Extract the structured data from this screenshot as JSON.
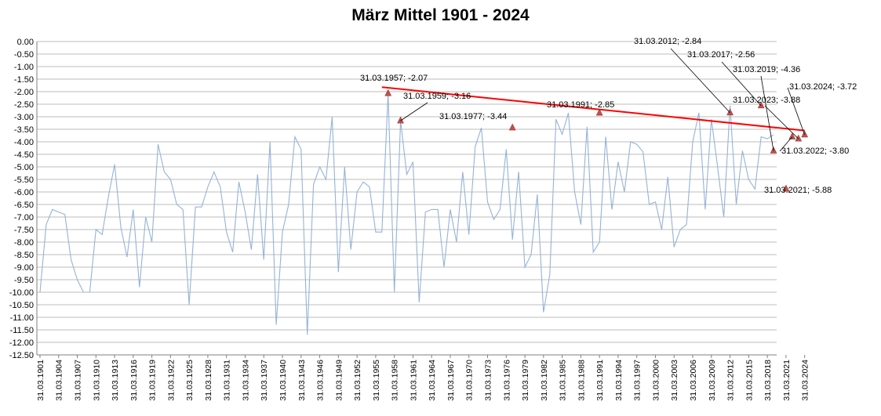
{
  "chart_data": {
    "type": "line",
    "title": "März Mittel 1901 - 2024",
    "xlabel": "",
    "ylabel": "",
    "ylim": [
      -12.5,
      0
    ],
    "y_ticks": [
      "0.00",
      "-0.50",
      "-1.00",
      "-1.50",
      "-2.00",
      "-2.50",
      "-3.00",
      "-3.50",
      "-4.00",
      "-4.50",
      "-5.00",
      "-5.50",
      "-6.00",
      "-6.50",
      "-7.00",
      "-7.50",
      "-8.00",
      "-8.50",
      "-9.00",
      "-9.50",
      "-10.00",
      "-10.50",
      "-11.00",
      "-11.50",
      "-12.00",
      "-12.50"
    ],
    "x_start_year": 1901,
    "x_tick_labels": [
      "31.03.1901",
      "31.03.1904",
      "31.03.1907",
      "31.03.1910",
      "31.03.1913",
      "31.03.1916",
      "31.03.1919",
      "31.03.1922",
      "31.03.1925",
      "31.03.1928",
      "31.03.1931",
      "31.03.1934",
      "31.03.1937",
      "31.03.1940",
      "31.03.1943",
      "31.03.1946",
      "31.03.1949",
      "31.03.1952",
      "31.03.1955",
      "31.03.1958",
      "31.03.1961",
      "31.03.1964",
      "31.03.1967",
      "31.03.1970",
      "31.03.1973",
      "31.03.1976",
      "31.03.1979",
      "31.03.1982",
      "31.03.1985",
      "31.03.1988",
      "31.03.1991",
      "31.03.1994",
      "31.03.1997",
      "31.03.2000",
      "31.03.2003",
      "31.03.2006",
      "31.03.2009",
      "31.03.2012",
      "31.03.2015",
      "31.03.2018",
      "31.03.2021",
      "31.03.2024"
    ],
    "grid": true,
    "series": [
      {
        "name": "",
        "color": "#95b3d7",
        "values": [
          -10.0,
          -7.3,
          -6.7,
          -6.8,
          -6.9,
          -8.7,
          -9.5,
          -10.0,
          -10.0,
          -7.5,
          -7.7,
          -6.2,
          -4.9,
          -7.4,
          -8.6,
          -6.7,
          -9.8,
          -7.0,
          -8.0,
          -4.1,
          -5.2,
          -5.5,
          -6.5,
          -6.7,
          -10.5,
          -6.6,
          -6.6,
          -5.8,
          -5.2,
          -5.8,
          -7.6,
          -8.4,
          -5.6,
          -6.8,
          -8.3,
          -5.3,
          -8.7,
          -4.0,
          -11.3,
          -7.6,
          -6.5,
          -3.8,
          -4.3,
          -11.7,
          -5.7,
          -5.0,
          -5.5,
          -3.0,
          -9.2,
          -5.0,
          -8.3,
          -6.0,
          -5.6,
          -5.8,
          -7.6,
          -7.6,
          -2.07,
          -10.0,
          -3.16,
          -5.3,
          -4.8,
          -10.4,
          -6.8,
          -6.7,
          -6.7,
          -9.0,
          -6.7,
          -8.0,
          -5.2,
          -7.7,
          -4.2,
          -3.44,
          -6.4,
          -7.1,
          -6.7,
          -4.3,
          -7.9,
          -5.2,
          -9.0,
          -8.5,
          -6.1,
          -10.8,
          -9.3,
          -3.1,
          -3.7,
          -2.85,
          -6.0,
          -7.3,
          -3.4,
          -8.4,
          -8.0,
          -3.8,
          -6.7,
          -4.8,
          -6.0,
          -4.0,
          -4.1,
          -4.4,
          -6.5,
          -6.4,
          -7.5,
          -5.4,
          -8.2,
          -7.5,
          -7.3,
          -4.0,
          -2.84,
          -6.7,
          -3.1,
          -5.0,
          -7.0,
          -2.56,
          -6.5,
          -4.36,
          -5.5,
          -5.88,
          -3.8,
          -3.88,
          -3.72
        ]
      }
    ],
    "highlight_markers": [
      {
        "year": 1957,
        "value": -2.07,
        "label": "31.03.1957; -2.07"
      },
      {
        "year": 1959,
        "value": -3.16,
        "label": "31.03.1959; -3.16"
      },
      {
        "year": 1977,
        "value": -3.44,
        "label": "31.03.1977; -3.44"
      },
      {
        "year": 1991,
        "value": -2.85,
        "label": "31.03.1991; -2.85"
      },
      {
        "year": 2012,
        "value": -2.84,
        "label": "31.03.2012; -2.84"
      },
      {
        "year": 2017,
        "value": -2.56,
        "label": "31.03.2017; -2.56"
      },
      {
        "year": 2019,
        "value": -4.36,
        "label": "31.03.2019; -4.36"
      },
      {
        "year": 2021,
        "value": -5.88,
        "label": "31.03.2021; -5.88"
      },
      {
        "year": 2022,
        "value": -3.8,
        "label": "31.03.2022; -3.80"
      },
      {
        "year": 2023,
        "value": -3.88,
        "label": "31.03.2023; -3.88"
      },
      {
        "year": 2024,
        "value": -3.72,
        "label": "31.03.2024; -3.72"
      }
    ],
    "marker_color": "#c0504d",
    "trendline": {
      "color": "#ff0000",
      "x_from": 1956,
      "x_to": 2024,
      "y_from": -1.82,
      "y_to": -3.55
    }
  }
}
